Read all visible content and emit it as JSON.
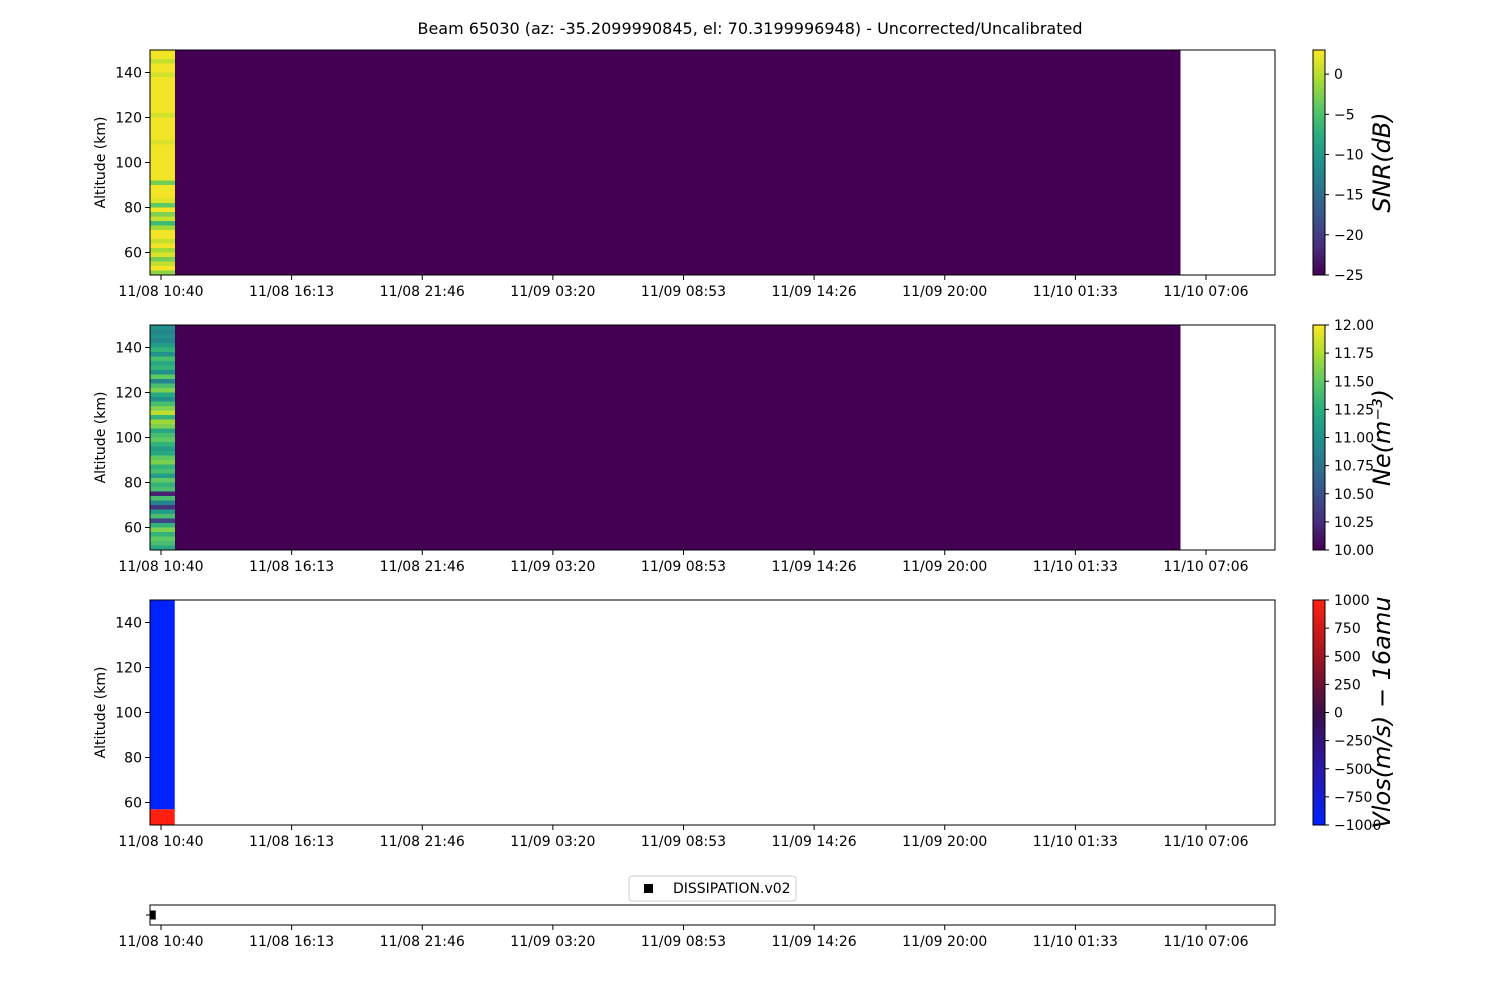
{
  "chart_data": {
    "title": "Beam 65030 (az: -35.2099990845, el: 70.3199996948) - Uncorrected/Uncalibrated",
    "x_tick_labels": [
      "11/08 10:40",
      "11/08 16:13",
      "11/08 21:46",
      "11/09 03:20",
      "11/09 08:53",
      "11/09 14:26",
      "11/09 20:00",
      "11/10 01:33",
      "11/10 07:06"
    ],
    "panels": [
      {
        "type": "heatmap",
        "ylabel": "Altitude (km)",
        "y_ticks": [
          60,
          80,
          100,
          120,
          140
        ],
        "ylim": [
          50,
          150
        ],
        "colorbar_label": "SNR(dB)",
        "colormap": "viridis",
        "clim": [
          -25,
          3
        ],
        "cb_ticks": [
          0,
          -5,
          -10,
          -15,
          -20,
          -25
        ],
        "cb_tick_labels": [
          "0",
          "−5",
          "−10",
          "−15",
          "−20",
          "−25"
        ],
        "x_end_fraction": 0.916,
        "background_value": -25,
        "first_column_values": [
          2.5,
          2.5,
          0.5,
          2.5,
          2.5,
          1.0,
          2.5,
          2.5,
          2.5,
          2.5,
          2.5,
          2.5,
          2.5,
          2.5,
          1.0,
          2.5,
          2.5,
          2.5,
          2.5,
          2.5,
          1.5,
          2.5,
          2.5,
          2.5,
          2.5,
          2.5,
          2.5,
          2.5,
          2.5,
          -3.0,
          2.5,
          2.5,
          2.5,
          1.5,
          -4.0,
          2.5,
          -2.5,
          0.5,
          -6.0,
          -1.0,
          2.5,
          2.5,
          0.5,
          2.5,
          -1.0,
          1.5,
          -3.0,
          0.5,
          2.5,
          -2.0
        ]
      },
      {
        "type": "heatmap",
        "ylabel": "Altitude (km)",
        "y_ticks": [
          60,
          80,
          100,
          120,
          140
        ],
        "ylim": [
          50,
          150
        ],
        "colorbar_label": "Ne(m⁻³)",
        "colormap": "viridis",
        "clim": [
          10,
          12
        ],
        "cb_ticks": [
          12.0,
          11.75,
          11.5,
          11.25,
          11.0,
          10.75,
          10.5,
          10.25,
          10.0
        ],
        "cb_tick_labels": [
          "12.00",
          "11.75",
          "11.50",
          "11.25",
          "11.00",
          "10.75",
          "10.50",
          "10.25",
          "10.00"
        ],
        "x_end_fraction": 0.916,
        "background_value": 10.0,
        "first_column_values": [
          11.0,
          10.9,
          11.0,
          10.9,
          11.1,
          11.3,
          11.0,
          11.4,
          11.2,
          11.3,
          11.0,
          11.5,
          10.9,
          11.4,
          11.6,
          11.2,
          11.0,
          11.4,
          11.6,
          11.8,
          11.3,
          11.7,
          11.6,
          11.2,
          11.4,
          11.5,
          11.3,
          11.1,
          11.2,
          11.5,
          11.6,
          11.3,
          11.4,
          11.1,
          11.5,
          11.3,
          11.4,
          10.2,
          11.4,
          10.9,
          10.3,
          11.1,
          11.4,
          10.4,
          11.3,
          11.6,
          11.3,
          11.5,
          11.4,
          11.2
        ]
      },
      {
        "type": "heatmap",
        "ylabel": "Altitude (km)",
        "y_ticks": [
          60,
          80,
          100,
          120,
          140
        ],
        "ylim": [
          50,
          150
        ],
        "colorbar_label": "Vlos(m/s) − 16amu",
        "colormap": "blue-red",
        "clim": [
          -1000,
          1000
        ],
        "cb_ticks": [
          1000,
          750,
          500,
          250,
          0,
          -250,
          -500,
          -750,
          -1000
        ],
        "cb_tick_labels": [
          "1000",
          "750",
          "500",
          "250",
          "0",
          "−250",
          "−500",
          "−750",
          "−1000"
        ],
        "x_end_fraction": 0.022,
        "background_value": null,
        "cells": [
          {
            "y_from": 50,
            "y_to": 57,
            "value": 1000
          },
          {
            "y_from": 57,
            "y_to": 150,
            "value": -1000
          }
        ]
      },
      {
        "type": "scatter",
        "legend": "DISSIPATION.v02",
        "marker": "square",
        "marker_color": "#000000",
        "points": [
          {
            "x_fraction": 0.002
          }
        ]
      }
    ]
  }
}
